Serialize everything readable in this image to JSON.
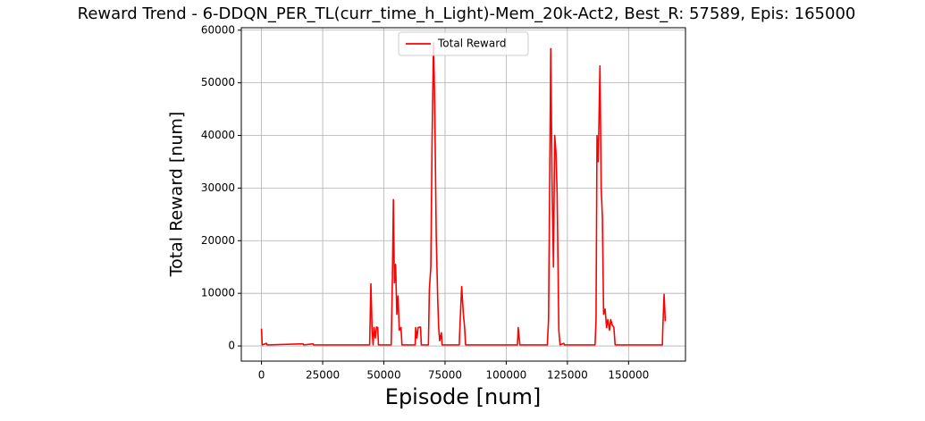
{
  "chart_data": {
    "type": "line",
    "title": "Reward Trend - 6-DDQN_PER_TL(curr_time_h_Light)-Mem_20k-Act2, Best_R: 57589, Epis: 165000",
    "x_label": "Episode [num]",
    "y_label": "Total Reward [num]",
    "x": [
      0,
      300,
      2000,
      2300,
      17000,
      17300,
      21000,
      21300,
      44200,
      44700,
      45200,
      45600,
      46000,
      46500,
      47000,
      47500,
      47800,
      53000,
      53500,
      53900,
      54300,
      54800,
      55300,
      55800,
      56300,
      57000,
      57400,
      62800,
      63000,
      63500,
      64000,
      65000,
      65300,
      68200,
      68600,
      69200,
      69700,
      70300,
      70800,
      71400,
      72000,
      72400,
      72800,
      73500,
      73800,
      80800,
      81200,
      81800,
      82500,
      83000,
      83400,
      104600,
      104900,
      105300,
      105600,
      116800,
      117300,
      117800,
      118200,
      118700,
      119300,
      119800,
      120300,
      120800,
      121500,
      122000,
      123500,
      123800,
      136300,
      136700,
      137100,
      137600,
      138300,
      138800,
      139300,
      139800,
      140400,
      141000,
      141500,
      142200,
      142700,
      143300,
      144000,
      144500,
      163800,
      164000,
      164500,
      165000
    ],
    "series": [
      {
        "name": "Total Reward",
        "color": "#ff0000",
        "values": [
          3300,
          200,
          500,
          200,
          400,
          200,
          400,
          200,
          200,
          11800,
          3000,
          200,
          3500,
          1500,
          3600,
          3500,
          200,
          200,
          13000,
          27800,
          12000,
          15500,
          6000,
          9500,
          3000,
          3500,
          200,
          200,
          3500,
          1500,
          3500,
          3600,
          200,
          200,
          10800,
          15000,
          39000,
          57589,
          45500,
          21000,
          9000,
          3500,
          1000,
          2500,
          200,
          200,
          5000,
          11300,
          6000,
          3500,
          200,
          200,
          3500,
          1500,
          200,
          200,
          5000,
          33000,
          56500,
          32000,
          15000,
          40000,
          37000,
          29000,
          3000,
          200,
          500,
          200,
          200,
          5000,
          40000,
          35000,
          53200,
          30000,
          24500,
          6000,
          7000,
          3500,
          5000,
          3000,
          5000,
          4000,
          3500,
          200,
          200,
          3500,
          9800,
          4700
        ]
      }
    ],
    "xlim": [
      -8250,
      173250
    ],
    "ylim": [
      -2880,
      60470
    ],
    "xticks": [
      0,
      25000,
      50000,
      75000,
      100000,
      125000,
      150000
    ],
    "yticks": [
      0,
      10000,
      20000,
      30000,
      40000,
      50000,
      60000
    ],
    "grid": true,
    "legend": "upper center"
  }
}
